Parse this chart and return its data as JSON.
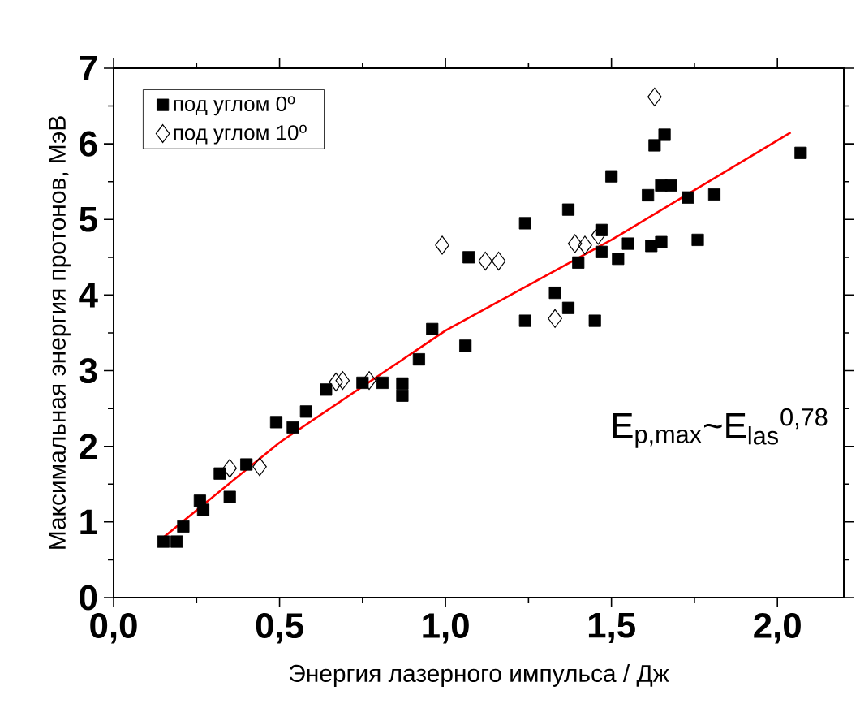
{
  "chart_data": {
    "type": "scatter",
    "xlabel": "Энергия лазерного импульса / Дж",
    "ylabel": "Максимальная энергия протонов, МэВ",
    "annotations": [
      "E$_{p,max}$~E$_{las}$$^{0,78}$"
    ],
    "xlim": [
      0,
      2.2
    ],
    "ylim": [
      0,
      7
    ],
    "xticks": [
      {
        "value": 0,
        "label": "0,0"
      },
      {
        "value": 0.5,
        "label": "0,5"
      },
      {
        "value": 1,
        "label": "1,0"
      },
      {
        "value": 1.5,
        "label": "1,5"
      },
      {
        "value": 2,
        "label": "2,0"
      }
    ],
    "yticks": [
      0,
      1,
      2,
      3,
      4,
      5,
      6,
      7
    ],
    "legend": "top left",
    "grid": false,
    "series": [
      {
        "name": "под углом 0$^{o}$",
        "color": "#000000",
        "marker": "square",
        "x": [
          0.15,
          0.19,
          0.21,
          0.26,
          0.27,
          0.32,
          0.35,
          0.4,
          0.49,
          0.54,
          0.58,
          0.64,
          0.75,
          0.81,
          0.87,
          0.87,
          0.92,
          0.96,
          1.06,
          1.07,
          1.24,
          1.37,
          1.47,
          1.4,
          1.47,
          1.52,
          1.55,
          1.62,
          1.65,
          1.76,
          1.5,
          1.61,
          1.65,
          1.68,
          1.73,
          1.81,
          1.63,
          1.66,
          2.07,
          1.33,
          1.37,
          1.24,
          1.45
        ],
        "values": [
          0.74,
          0.74,
          0.94,
          1.28,
          1.16,
          1.64,
          1.33,
          1.76,
          2.32,
          2.25,
          2.46,
          2.75,
          2.84,
          2.84,
          2.83,
          2.67,
          3.15,
          3.55,
          3.33,
          4.5,
          4.95,
          5.13,
          4.86,
          4.43,
          4.57,
          4.48,
          4.68,
          4.65,
          4.7,
          4.73,
          5.57,
          5.32,
          5.45,
          5.45,
          5.29,
          5.33,
          5.98,
          6.12,
          5.88,
          4.03,
          3.83,
          3.66,
          3.66
        ]
      },
      {
        "name": "под углом 10$^{o}$",
        "color": "#000000",
        "marker": "diamond",
        "x": [
          0.35,
          0.44,
          0.67,
          0.69,
          0.77,
          0.99,
          1.12,
          1.16,
          1.39,
          1.42,
          1.46,
          1.33,
          1.63
        ],
        "values": [
          1.71,
          1.73,
          2.85,
          2.87,
          2.87,
          4.66,
          4.45,
          4.45,
          4.68,
          4.66,
          4.79,
          3.69,
          6.62
        ]
      },
      {
        "type": "line",
        "color": "#ff0000",
        "marker": "none",
        "line_style": "solid",
        "x": [
          0.14,
          0.5,
          1.0,
          1.5,
          2.04
        ],
        "values": [
          0.76,
          2.05,
          3.53,
          4.73,
          6.15
        ]
      }
    ]
  }
}
